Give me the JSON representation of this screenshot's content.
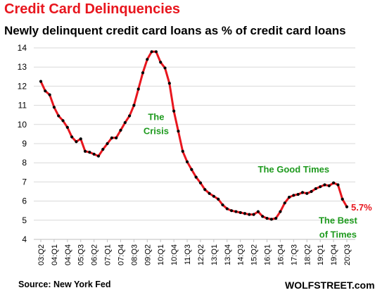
{
  "title": "Credit Card Delinquencies",
  "subtitle": "Newly delinquent credit card loans as % of credit card loans",
  "source": "Source: New York Fed",
  "brand": "WOLFSTREET.com",
  "colors": {
    "title": "#e8161e",
    "line": "#e8161e",
    "marker": "#000000",
    "annotation_green": "#1e9a1e",
    "annotation_red": "#e8161e",
    "grid": "#d9d9d9"
  },
  "chart_data": {
    "type": "line",
    "title": "Credit Card Delinquencies",
    "subtitle": "Newly delinquent credit card loans as % of credit card loans",
    "xlabel": "",
    "ylabel": "",
    "ylim": [
      4,
      14
    ],
    "yticks": [
      4,
      5,
      6,
      7,
      8,
      9,
      10,
      11,
      12,
      13,
      14
    ],
    "grid": "horizontal",
    "legend": "none",
    "xtick_labels": [
      "03:Q2",
      "04:Q1",
      "04:Q4",
      "05:Q3",
      "06:Q2",
      "07:Q1",
      "07:Q4",
      "08:Q3",
      "09:Q2",
      "10:Q1",
      "10:Q4",
      "11:Q3",
      "12:Q2",
      "13:Q1",
      "13:Q4",
      "14:Q3",
      "15:Q2",
      "16:Q1",
      "16:Q4",
      "17:Q3",
      "18:Q2",
      "19:Q1",
      "19:Q4",
      "20:Q3"
    ],
    "x_start": "03:Q2",
    "x_end": "20:Q3",
    "series": [
      {
        "values": [
          12.25,
          11.75,
          11.55,
          10.9,
          10.45,
          10.2,
          9.85,
          9.35,
          9.1,
          9.25,
          8.6,
          8.55,
          8.45,
          8.35,
          8.7,
          9.0,
          9.3,
          9.3,
          9.7,
          10.1,
          10.45,
          11.0,
          11.85,
          12.7,
          13.4,
          13.8,
          13.8,
          13.25,
          12.95,
          12.15,
          10.7,
          9.65,
          8.6,
          8.05,
          7.65,
          7.25,
          6.95,
          6.6,
          6.4,
          6.25,
          6.1,
          5.8,
          5.6,
          5.5,
          5.45,
          5.4,
          5.35,
          5.3,
          5.3,
          5.45,
          5.2,
          5.1,
          5.05,
          5.1,
          5.45,
          5.9,
          6.2,
          6.3,
          6.35,
          6.45,
          6.4,
          6.5,
          6.65,
          6.75,
          6.85,
          6.8,
          6.95,
          6.85,
          6.1,
          5.7
        ]
      }
    ],
    "annotations": [
      {
        "text_lines": [
          "The",
          "Crisis"
        ],
        "x": "09:Q4",
        "y": 9.9,
        "color": "#1e9a1e"
      },
      {
        "text_lines": [
          "The Good Times"
        ],
        "x": "17:Q3",
        "y": 7.5,
        "color": "#1e9a1e"
      },
      {
        "text_lines": [
          "5.7%"
        ],
        "x": "20:Q3",
        "y": 5.7,
        "color": "#e8161e"
      },
      {
        "text_lines": [
          "The Best",
          "of Times"
        ],
        "x": "20:Q1",
        "y": 4.5,
        "color": "#1e9a1e"
      }
    ]
  }
}
